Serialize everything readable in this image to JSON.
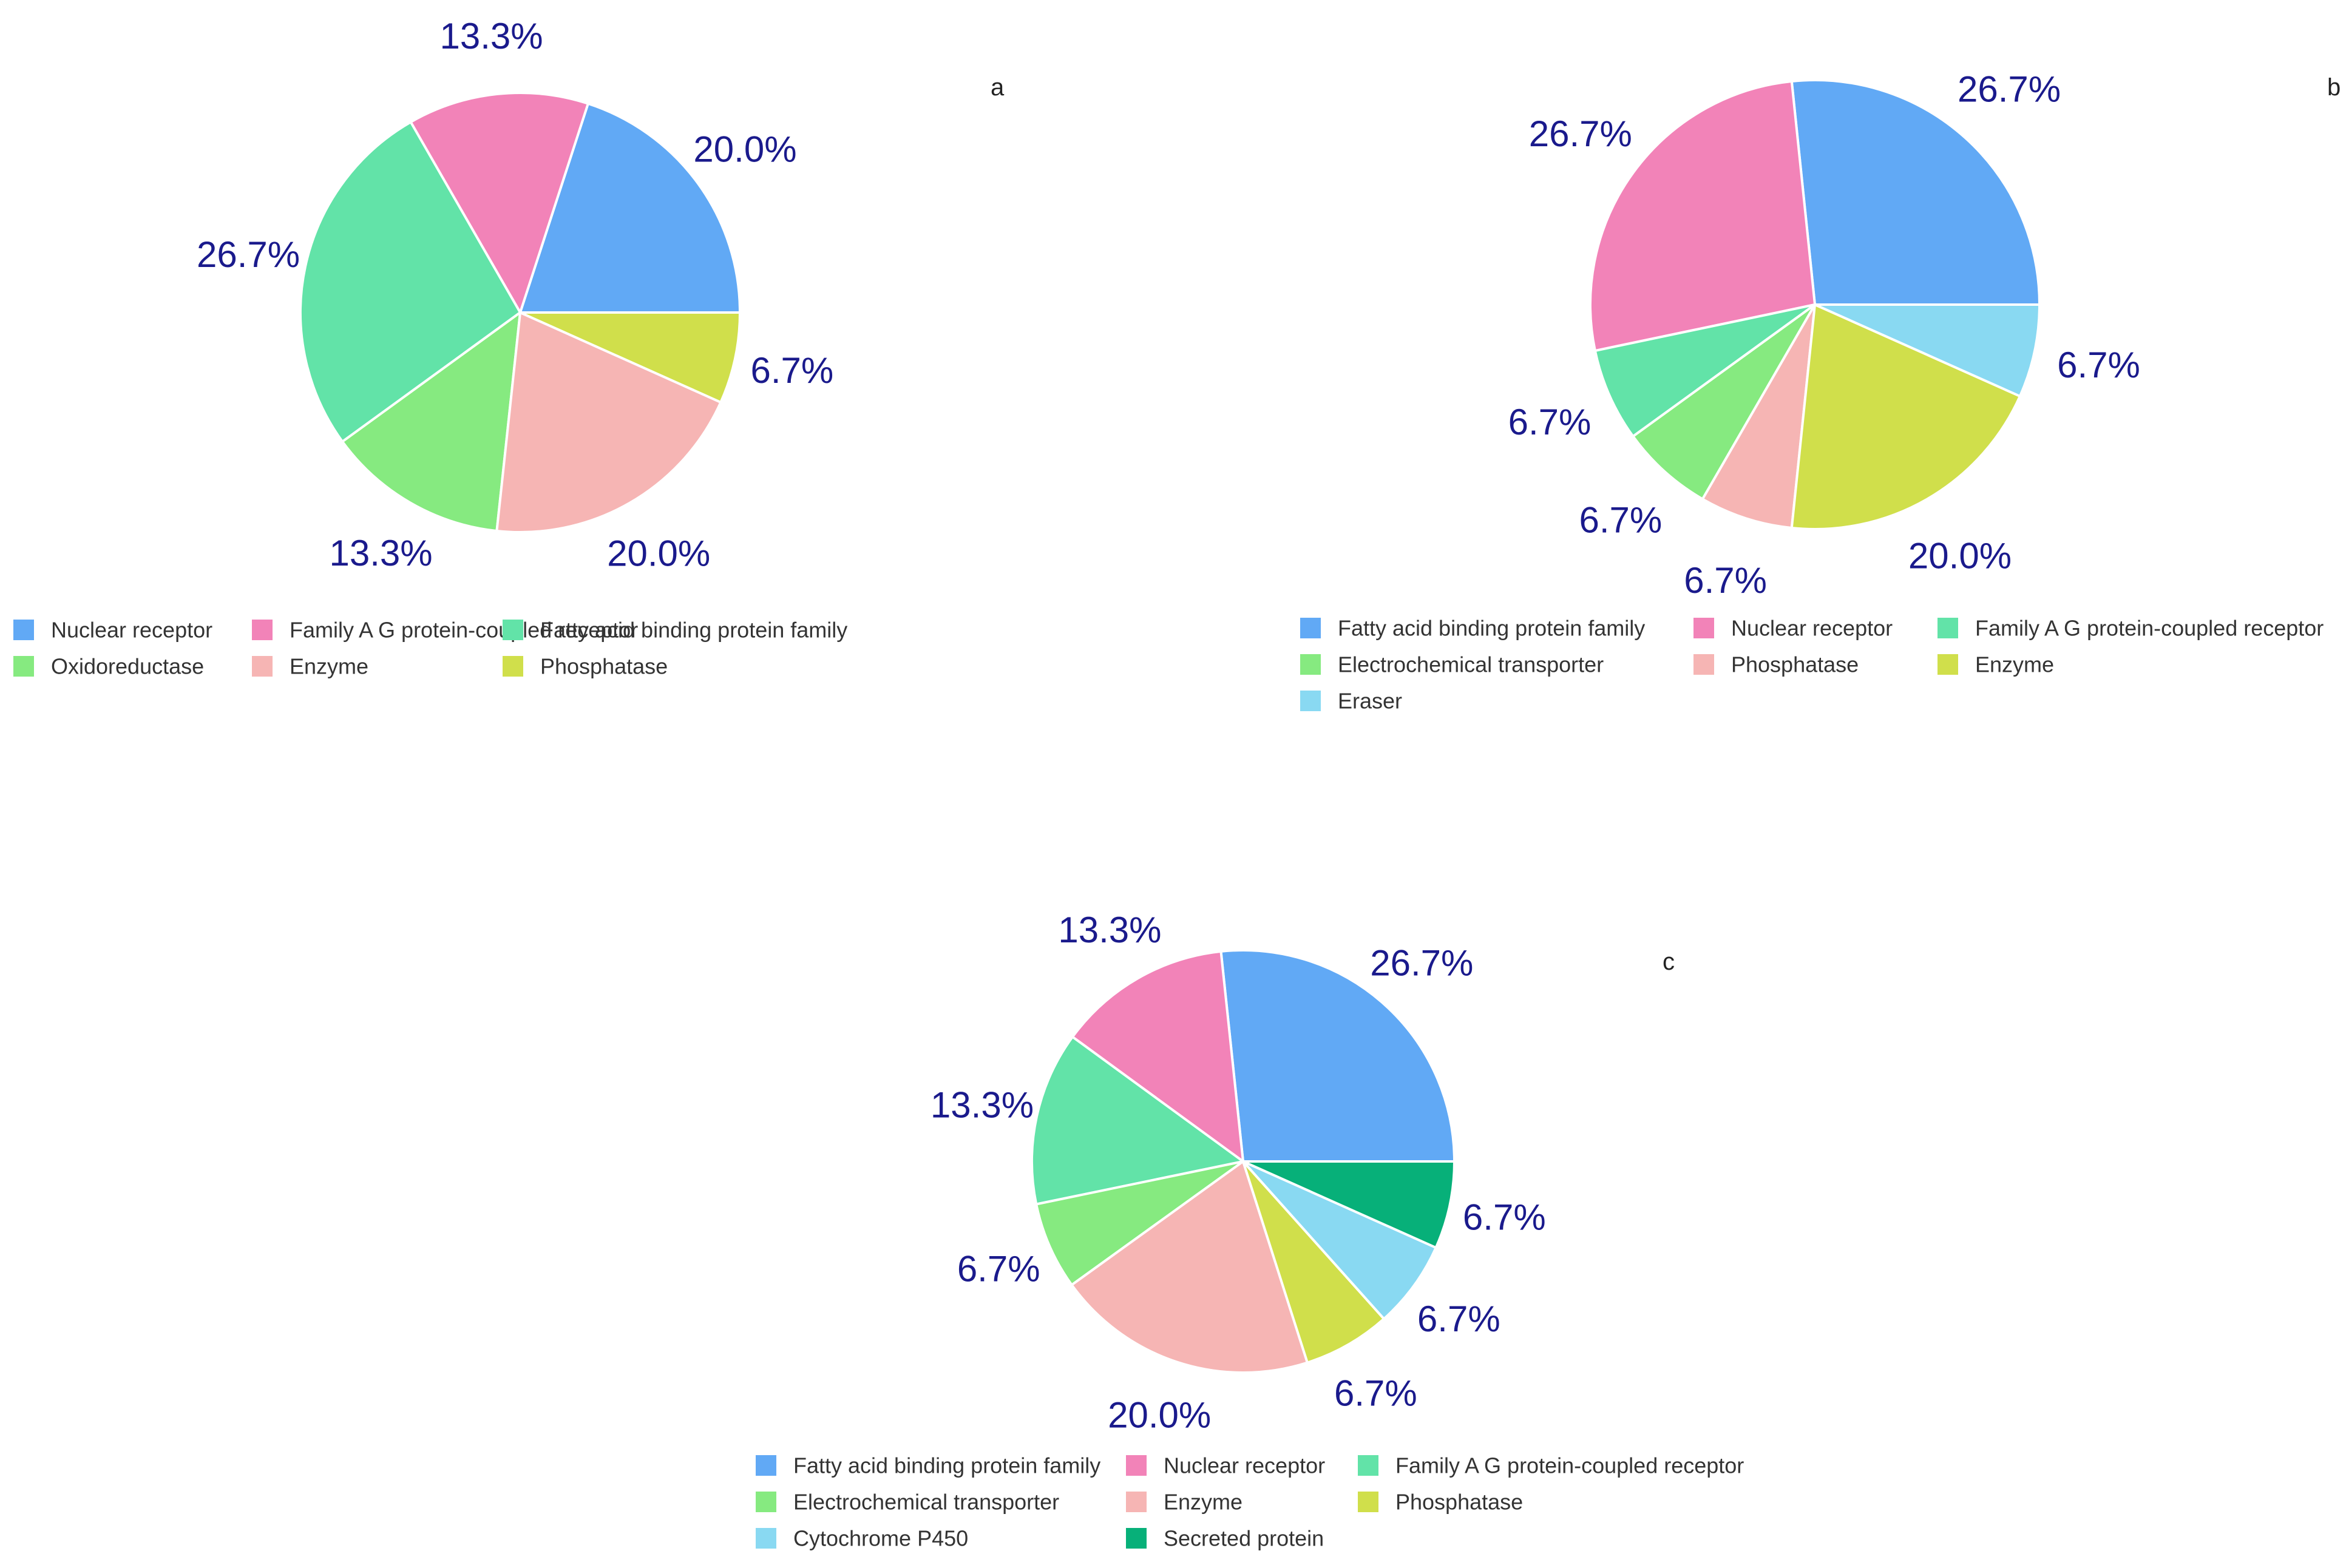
{
  "chart_data": [
    {
      "type": "pie",
      "panel_label": "a",
      "categories": [
        "Nuclear receptor",
        "Family A G protein-coupled receptor",
        "Fatty acid binding protein family",
        "Oxidoreductase",
        "Enzyme",
        "Phosphatase"
      ],
      "values": [
        20.0,
        13.3,
        26.7,
        13.3,
        20.0,
        6.7
      ],
      "data_labels": [
        "20.0%",
        "13.3%",
        "26.7%",
        "13.3%",
        "20.0%",
        "6.7%"
      ],
      "slice_colors": [
        "#61a9f5",
        "#f283b8",
        "#62e3a8",
        "#86ea80",
        "#f6b5b4",
        "#d0df4b"
      ],
      "start_angle_deg": 0,
      "direction": "counterclockwise",
      "legend_position": "bottom",
      "label_color": "#1a1a8c"
    },
    {
      "type": "pie",
      "panel_label": "b",
      "categories": [
        "Fatty acid binding protein family",
        "Nuclear receptor",
        "Family A G protein-coupled receptor",
        "Electrochemical transporter",
        "Phosphatase",
        "Enzyme",
        "Eraser"
      ],
      "values": [
        26.7,
        26.7,
        6.7,
        6.7,
        6.7,
        20.0,
        6.7
      ],
      "data_labels": [
        "26.7%",
        "26.7%",
        "6.7%",
        "6.7%",
        "6.7%",
        "20.0%",
        "6.7%"
      ],
      "slice_colors": [
        "#61a9f5",
        "#f283b8",
        "#62e3a8",
        "#86ea80",
        "#f6b5b4",
        "#d0df4b",
        "#89d9f2"
      ],
      "start_angle_deg": 0,
      "direction": "counterclockwise",
      "legend_position": "bottom",
      "label_color": "#1a1a8c"
    },
    {
      "type": "pie",
      "panel_label": "c",
      "categories": [
        "Fatty acid binding protein family",
        "Nuclear receptor",
        "Family A G protein-coupled receptor",
        "Electrochemical transporter",
        "Enzyme",
        "Phosphatase",
        "Cytochrome P450",
        "Secreted protein"
      ],
      "values": [
        26.7,
        13.3,
        13.3,
        6.7,
        20.0,
        6.7,
        6.7,
        6.7
      ],
      "data_labels": [
        "26.7%",
        "13.3%",
        "13.3%",
        "6.7%",
        "20.0%",
        "6.7%",
        "6.7%",
        "6.7%"
      ],
      "slice_colors": [
        "#61a9f5",
        "#f283b8",
        "#62e3a8",
        "#86ea80",
        "#f6b5b4",
        "#d0df4b",
        "#89d9f2",
        "#07b079"
      ],
      "start_angle_deg": 0,
      "direction": "counterclockwise",
      "legend_position": "bottom",
      "label_color": "#1a1a8c"
    }
  ]
}
